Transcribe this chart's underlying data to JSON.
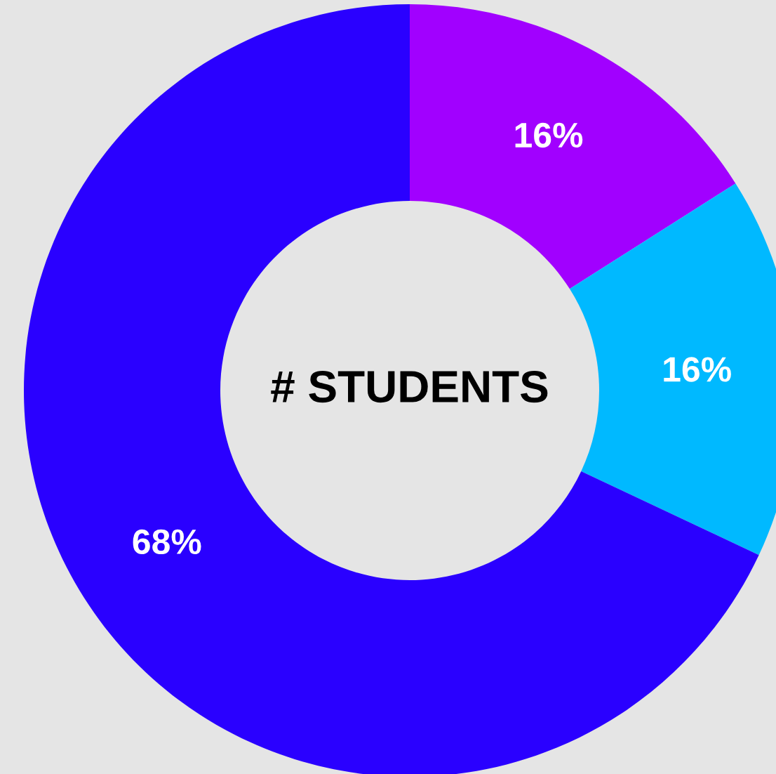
{
  "chart_data": {
    "type": "donut",
    "title": "# STUDENTS",
    "categories": [
      null,
      null,
      null
    ],
    "values": [
      16,
      16,
      68
    ],
    "colors": [
      "#a100ff",
      "#00b9ff",
      "#2a00ff"
    ],
    "value_labels": [
      "16%",
      "16%",
      "68%"
    ]
  }
}
